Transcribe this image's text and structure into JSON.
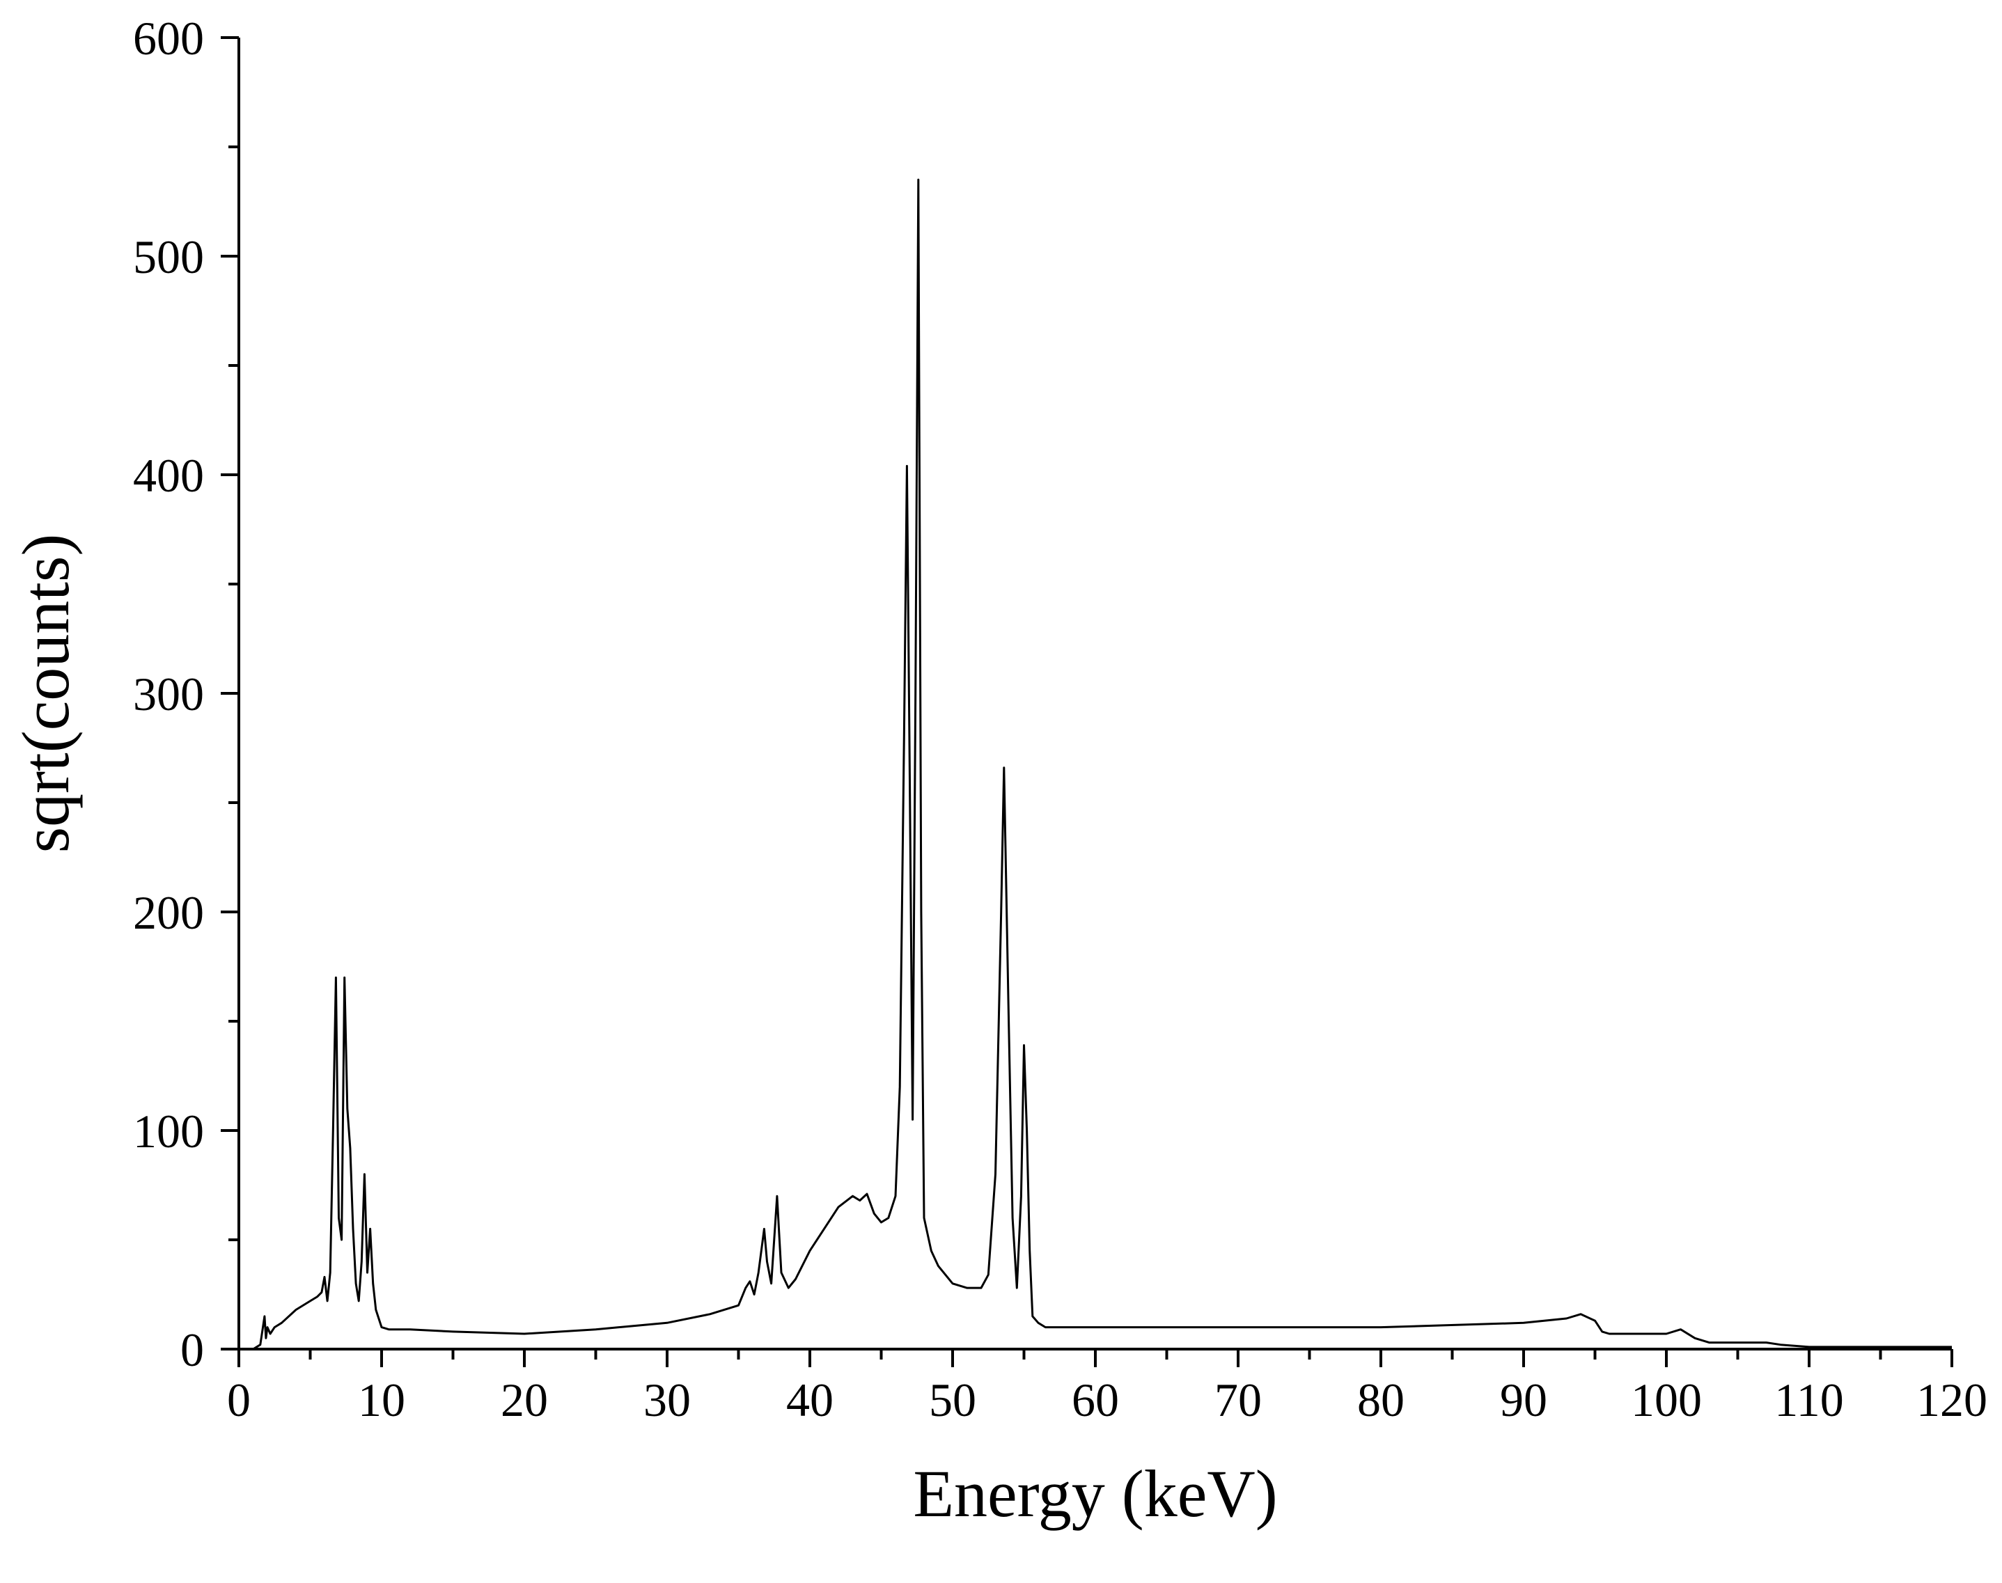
{
  "chart_data": {
    "type": "line",
    "title": "",
    "xlabel": "Energy (keV)",
    "ylabel": "sqrt(counts)",
    "xlim": [
      0,
      120
    ],
    "ylim": [
      0,
      600
    ],
    "x_ticks": [
      0,
      10,
      20,
      30,
      40,
      50,
      60,
      70,
      80,
      90,
      100,
      110,
      120
    ],
    "y_ticks": [
      0,
      100,
      200,
      300,
      400,
      500,
      600
    ],
    "grid": false,
    "legend": "none",
    "line_color": "#000000",
    "series": [
      {
        "x": [
          1.0,
          1.5,
          1.8,
          1.9,
          2.0,
          2.2,
          2.5,
          3.0,
          4.0,
          5.0,
          5.5,
          5.8,
          6.0,
          6.2,
          6.4,
          6.6,
          6.8,
          7.0,
          7.2,
          7.4,
          7.6,
          7.8,
          8.0,
          8.2,
          8.4,
          8.6,
          8.8,
          9.0,
          9.2,
          9.4,
          9.6,
          10.0,
          10.5,
          12,
          15,
          20,
          25,
          30,
          33,
          35,
          35.5,
          35.8,
          36.1,
          36.4,
          36.8,
          37.0,
          37.3,
          37.7,
          38.0,
          38.5,
          39,
          40,
          41,
          42,
          43,
          43.5,
          44,
          44.5,
          45,
          45.5,
          46,
          46.3,
          46.6,
          46.8,
          47.0,
          47.2,
          47.4,
          47.6,
          47.8,
          48.0,
          48.5,
          49,
          50,
          51,
          52,
          52.5,
          53,
          53.4,
          53.6,
          53.9,
          54.2,
          54.5,
          54.8,
          55.0,
          55.2,
          55.4,
          55.6,
          56.0,
          56.5,
          58,
          60,
          70,
          80,
          90,
          93,
          94,
          95,
          95.5,
          96,
          100,
          101,
          102,
          103,
          105,
          107,
          108,
          110,
          115,
          120
        ],
        "y": [
          0,
          2,
          15,
          5,
          10,
          7,
          10,
          12,
          18,
          22,
          24,
          26,
          33,
          22,
          35,
          100,
          170,
          60,
          50,
          170,
          110,
          92,
          55,
          30,
          22,
          40,
          80,
          35,
          55,
          30,
          18,
          10,
          9,
          9,
          8,
          7,
          9,
          12,
          16,
          20,
          28,
          31,
          25,
          35,
          55,
          40,
          30,
          70,
          35,
          28,
          32,
          45,
          55,
          65,
          70,
          68,
          71,
          62,
          58,
          60,
          70,
          120,
          280,
          404,
          260,
          105,
          300,
          535,
          200,
          60,
          45,
          38,
          30,
          28,
          28,
          34,
          80,
          200,
          266,
          160,
          60,
          28,
          70,
          139,
          100,
          45,
          15,
          12,
          10,
          10,
          10,
          10,
          10,
          12,
          14,
          16,
          13,
          8,
          7,
          7,
          9,
          5,
          3,
          3,
          3,
          2,
          1,
          1,
          1
        ]
      }
    ]
  }
}
